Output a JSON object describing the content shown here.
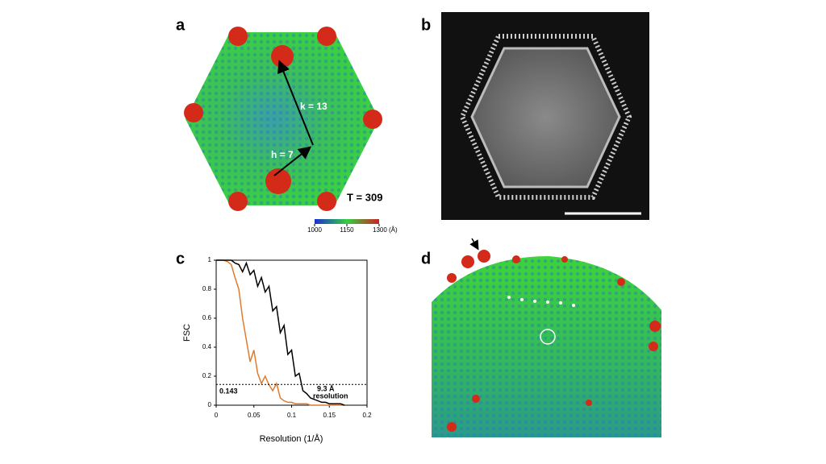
{
  "panel_labels": [
    "a",
    "b",
    "c",
    "d"
  ],
  "panel_a": {
    "k_label": "k = 13",
    "h_label": "h = 7",
    "t_label": "T = 309",
    "colorbar": {
      "lim": [
        1000,
        1300
      ],
      "ticks": [
        1000,
        1150,
        {
          "value": 1300,
          "label": "1300 (Å)"
        }
      ]
    }
  },
  "chart_data": {
    "type": "line",
    "ylabel": "FSC",
    "xlabel": "Resolution (1/Å)",
    "x": [
      0,
      0.005,
      0.01,
      0.015,
      0.02,
      0.025,
      0.03,
      0.035,
      0.04,
      0.045,
      0.05,
      0.055,
      0.06,
      0.065,
      0.07,
      0.075,
      0.08,
      0.085,
      0.09,
      0.095,
      0.1,
      0.105,
      0.11,
      0.115,
      0.12,
      0.125,
      0.13,
      0.135,
      0.14,
      0.145,
      0.15,
      0.155,
      0.16,
      0.165,
      0.17
    ],
    "series": [
      {
        "color": "#000000",
        "values": [
          1,
          1,
          1,
          1,
          1,
          0.98,
          0.97,
          0.92,
          0.98,
          0.9,
          0.93,
          0.82,
          0.88,
          0.78,
          0.82,
          0.65,
          0.68,
          0.5,
          0.55,
          0.35,
          0.38,
          0.2,
          0.22,
          0.1,
          0.08,
          0.05,
          0.04,
          0.03,
          0.02,
          0.02,
          0.01,
          0.01,
          0.01,
          0.01,
          0
        ]
      },
      {
        "color": "#e07b2e",
        "values": [
          1,
          1,
          1,
          0.99,
          0.97,
          0.88,
          0.8,
          0.6,
          0.45,
          0.3,
          0.38,
          0.22,
          0.15,
          0.2,
          0.14,
          0.1,
          0.15,
          0.05,
          0.03,
          0.02,
          0.02,
          0.01,
          0.01,
          0.01,
          0.01,
          0,
          0,
          0,
          0,
          0,
          0,
          0,
          0,
          0,
          0
        ]
      }
    ],
    "threshold": 0.143,
    "annotations": [
      "9.3 Å",
      "resolution"
    ],
    "xlim": [
      0,
      0.2
    ],
    "ylim": [
      0,
      1
    ],
    "xticks": [
      0,
      0.05,
      0.1,
      0.15,
      0.2
    ],
    "yticks": [
      0,
      0.2,
      0.4,
      0.6,
      0.8,
      1
    ]
  }
}
